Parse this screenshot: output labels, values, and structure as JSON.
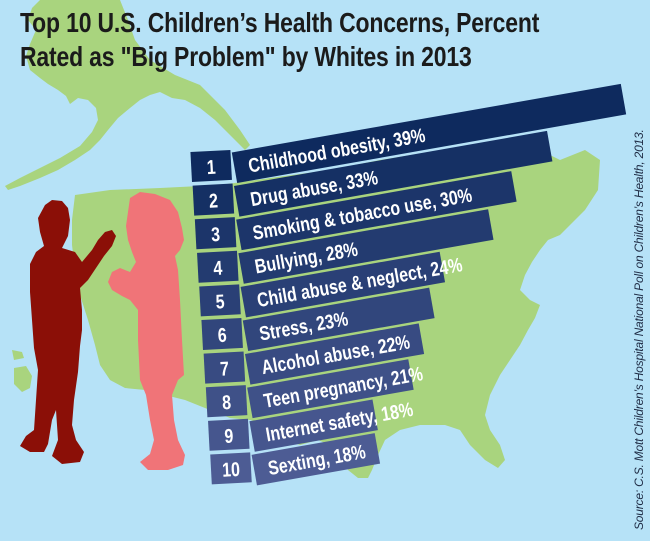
{
  "title": {
    "line1": "Top 10 U.S. Children’s Health Concerns, Percent",
    "line2": "Rated as \"Big Problem\" by Whites in 2013"
  },
  "source": "Source: C.S. Mott Children’s Hospital National Poll on Children’s Health, 2013.",
  "illustration": {
    "background": "map-of-united-states",
    "figures": [
      "boy-silhouette",
      "girl-silhouette"
    ]
  },
  "colors": {
    "ocean": "#b6e2f7",
    "land": "#a9d47e",
    "boy": "#8b0f07",
    "girl": "#f07478",
    "bar_dark": "#0e2a5e",
    "bar_light": "#4d5c94",
    "title_text": "#1b1b1b"
  },
  "chart_data": {
    "type": "bar",
    "orientation": "horizontal",
    "title": "Top 10 U.S. Children’s Health Concerns, Percent Rated as \"Big Problem\" by Whites in 2013",
    "xlabel": "",
    "ylabel": "",
    "unit": "%",
    "categories": [
      "Childhood obesity",
      "Drug abuse",
      "Smoking & tobacco use",
      "Bullying",
      "Child abuse & neglect",
      "Stress",
      "Alcohol abuse",
      "Teen pregnancy",
      "Internet safety",
      "Sexting"
    ],
    "ranks": [
      "1",
      "2",
      "3",
      "4",
      "5",
      "6",
      "7",
      "8",
      "9",
      "10"
    ],
    "values": [
      39,
      33,
      30,
      28,
      24,
      23,
      22,
      21,
      18,
      18
    ],
    "labels": [
      "Childhood obesity, 39%",
      "Drug abuse, 33%",
      "Smoking & tobacco use, 30%",
      "Bullying, 28%",
      "Child abuse & neglect, 24%",
      "Stress, 23%",
      "Alcohol abuse, 22%",
      "Teen pregnancy, 21%",
      "Internet safety, 18%",
      "Sexting, 18%"
    ],
    "grid": false,
    "legend": "none"
  }
}
